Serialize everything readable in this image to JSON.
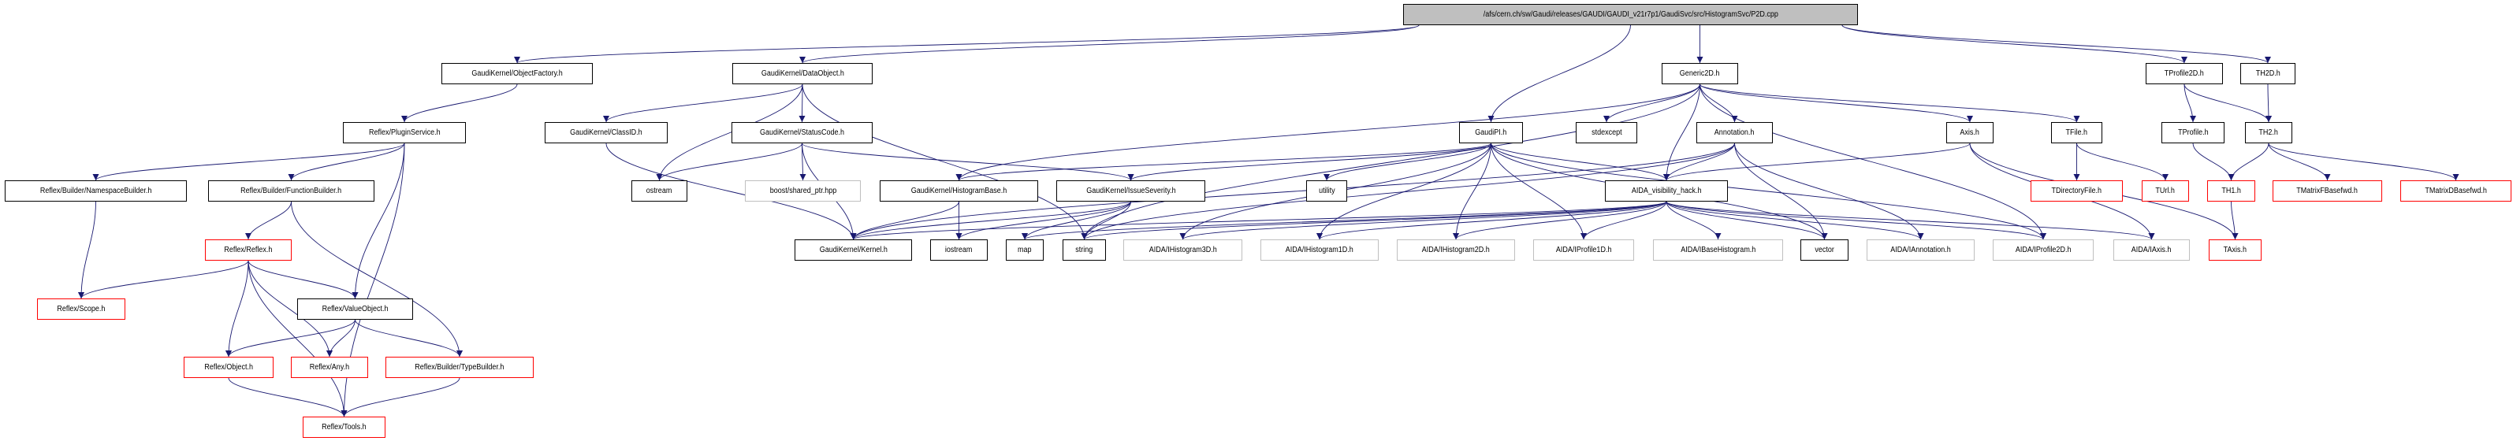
{
  "graph": {
    "edge_color": "#191970",
    "border_colors": {
      "normal": "#000000",
      "red": "#ff0000",
      "gray": "#bfbfbf",
      "root_fill": "#bfbfbf"
    },
    "nodes": [
      {
        "id": "root",
        "label": "/afs/cern.ch/sw/Gaudi/releases/GAUDI/GAUDI_v21r7p1/GaudiSvc/src/HistogramSvc/P2D.cpp",
        "style": "root"
      },
      {
        "id": "objfactory",
        "label": "GaudiKernel/ObjectFactory.h",
        "style": "normal"
      },
      {
        "id": "dataobject",
        "label": "GaudiKernel/DataObject.h",
        "style": "normal"
      },
      {
        "id": "generic2d",
        "label": "Generic2D.h",
        "style": "normal"
      },
      {
        "id": "tprofile2d",
        "label": "TProfile2D.h",
        "style": "normal"
      },
      {
        "id": "th2d",
        "label": "TH2D.h",
        "style": "normal"
      },
      {
        "id": "pluginservice",
        "label": "Reflex/PluginService.h",
        "style": "normal"
      },
      {
        "id": "classid",
        "label": "GaudiKernel/ClassID.h",
        "style": "normal"
      },
      {
        "id": "statuscode",
        "label": "GaudiKernel/StatusCode.h",
        "style": "normal"
      },
      {
        "id": "gaudipi",
        "label": "GaudiPI.h",
        "style": "normal"
      },
      {
        "id": "stdexcept",
        "label": "stdexcept",
        "style": "normal"
      },
      {
        "id": "annotation",
        "label": "Annotation.h",
        "style": "normal"
      },
      {
        "id": "axis",
        "label": "Axis.h",
        "style": "normal"
      },
      {
        "id": "tfile",
        "label": "TFile.h",
        "style": "normal"
      },
      {
        "id": "tprofile",
        "label": "TProfile.h",
        "style": "normal"
      },
      {
        "id": "th2",
        "label": "TH2.h",
        "style": "normal"
      },
      {
        "id": "nsbuilder",
        "label": "Reflex/Builder/NamespaceBuilder.h",
        "style": "normal"
      },
      {
        "id": "funcbuilder",
        "label": "Reflex/Builder/FunctionBuilder.h",
        "style": "normal"
      },
      {
        "id": "ostream",
        "label": "ostream",
        "style": "normal"
      },
      {
        "id": "boost",
        "label": "boost/shared_ptr.hpp",
        "style": "gray"
      },
      {
        "id": "histbase",
        "label": "GaudiKernel/HistogramBase.h",
        "style": "normal"
      },
      {
        "id": "issuesev",
        "label": "GaudiKernel/IssueSeverity.h",
        "style": "normal"
      },
      {
        "id": "utility",
        "label": "utility",
        "style": "normal"
      },
      {
        "id": "aidavis",
        "label": "AIDA_visibility_hack.h",
        "style": "normal"
      },
      {
        "id": "tdirfile",
        "label": "TDirectoryFile.h",
        "style": "red"
      },
      {
        "id": "turl",
        "label": "TUrl.h",
        "style": "red"
      },
      {
        "id": "th1",
        "label": "TH1.h",
        "style": "red"
      },
      {
        "id": "tmatf",
        "label": "TMatrixFBasefwd.h",
        "style": "red"
      },
      {
        "id": "tmatd",
        "label": "TMatrixDBasefwd.h",
        "style": "red"
      },
      {
        "id": "reflex",
        "label": "Reflex/Reflex.h",
        "style": "red"
      },
      {
        "id": "kernel",
        "label": "GaudiKernel/Kernel.h",
        "style": "normal"
      },
      {
        "id": "iostream",
        "label": "iostream",
        "style": "normal"
      },
      {
        "id": "map",
        "label": "map",
        "style": "normal"
      },
      {
        "id": "string",
        "label": "string",
        "style": "normal"
      },
      {
        "id": "ih3d",
        "label": "AIDA/IHistogram3D.h",
        "style": "gray"
      },
      {
        "id": "ih1d",
        "label": "AIDA/IHistogram1D.h",
        "style": "gray"
      },
      {
        "id": "ih2d",
        "label": "AIDA/IHistogram2D.h",
        "style": "gray"
      },
      {
        "id": "ip1d",
        "label": "AIDA/IProfile1D.h",
        "style": "gray"
      },
      {
        "id": "ibase",
        "label": "AIDA/IBaseHistogram.h",
        "style": "gray"
      },
      {
        "id": "vector",
        "label": "vector",
        "style": "normal"
      },
      {
        "id": "iannot",
        "label": "AIDA/IAnnotation.h",
        "style": "gray"
      },
      {
        "id": "ip2d",
        "label": "AIDA/IProfile2D.h",
        "style": "gray"
      },
      {
        "id": "iaxis",
        "label": "AIDA/IAxis.h",
        "style": "gray"
      },
      {
        "id": "taxis",
        "label": "TAxis.h",
        "style": "red"
      },
      {
        "id": "scope",
        "label": "Reflex/Scope.h",
        "style": "red"
      },
      {
        "id": "valueobj",
        "label": "Reflex/ValueObject.h",
        "style": "normal"
      },
      {
        "id": "object",
        "label": "Reflex/Object.h",
        "style": "red"
      },
      {
        "id": "any",
        "label": "Reflex/Any.h",
        "style": "red"
      },
      {
        "id": "typebuilder",
        "label": "Reflex/Builder/TypeBuilder.h",
        "style": "red"
      },
      {
        "id": "tools",
        "label": "Reflex/Tools.h",
        "style": "red"
      }
    ],
    "edges": [
      [
        "root",
        "objfactory"
      ],
      [
        "root",
        "dataobject"
      ],
      [
        "root",
        "gaudipi"
      ],
      [
        "root",
        "generic2d"
      ],
      [
        "root",
        "tprofile2d"
      ],
      [
        "root",
        "th2d"
      ],
      [
        "objfactory",
        "pluginservice"
      ],
      [
        "pluginservice",
        "nsbuilder"
      ],
      [
        "pluginservice",
        "funcbuilder"
      ],
      [
        "pluginservice",
        "valueobj"
      ],
      [
        "pluginservice",
        "tools"
      ],
      [
        "nsbuilder",
        "scope"
      ],
      [
        "funcbuilder",
        "reflex"
      ],
      [
        "funcbuilder",
        "typebuilder"
      ],
      [
        "reflex",
        "scope"
      ],
      [
        "reflex",
        "valueobj"
      ],
      [
        "reflex",
        "object"
      ],
      [
        "reflex",
        "any"
      ],
      [
        "reflex",
        "tools"
      ],
      [
        "valueobj",
        "object"
      ],
      [
        "valueobj",
        "any"
      ],
      [
        "valueobj",
        "typebuilder"
      ],
      [
        "object",
        "tools"
      ],
      [
        "typebuilder",
        "tools"
      ],
      [
        "dataobject",
        "classid"
      ],
      [
        "dataobject",
        "ostream"
      ],
      [
        "dataobject",
        "statuscode"
      ],
      [
        "dataobject",
        "string"
      ],
      [
        "classid",
        "kernel"
      ],
      [
        "statuscode",
        "ostream"
      ],
      [
        "statuscode",
        "boost"
      ],
      [
        "statuscode",
        "kernel"
      ],
      [
        "statuscode",
        "issuesev"
      ],
      [
        "histbase",
        "kernel"
      ],
      [
        "histbase",
        "iostream"
      ],
      [
        "issuesev",
        "kernel"
      ],
      [
        "issuesev",
        "iostream"
      ],
      [
        "issuesev",
        "map"
      ],
      [
        "issuesev",
        "string"
      ],
      [
        "gaudipi",
        "histbase"
      ],
      [
        "gaudipi",
        "issuesev"
      ],
      [
        "gaudipi",
        "utility"
      ],
      [
        "gaudipi",
        "ih3d"
      ],
      [
        "gaudipi",
        "ih1d"
      ],
      [
        "gaudipi",
        "ih2d"
      ],
      [
        "gaudipi",
        "ip1d"
      ],
      [
        "gaudipi",
        "aidavis"
      ],
      [
        "gaudipi",
        "ip2d"
      ],
      [
        "gaudipi",
        "vector"
      ],
      [
        "generic2d",
        "histbase"
      ],
      [
        "generic2d",
        "stdexcept"
      ],
      [
        "generic2d",
        "aidavis"
      ],
      [
        "generic2d",
        "annotation"
      ],
      [
        "generic2d",
        "ip2d"
      ],
      [
        "generic2d",
        "axis"
      ],
      [
        "generic2d",
        "tfile"
      ],
      [
        "generic2d",
        "string"
      ],
      [
        "annotation",
        "aidavis"
      ],
      [
        "annotation",
        "vector"
      ],
      [
        "annotation",
        "iannot"
      ],
      [
        "annotation",
        "kernel"
      ],
      [
        "annotation",
        "string"
      ],
      [
        "aidavis",
        "kernel"
      ],
      [
        "aidavis",
        "map"
      ],
      [
        "aidavis",
        "string"
      ],
      [
        "aidavis",
        "ih3d"
      ],
      [
        "aidavis",
        "ih1d"
      ],
      [
        "aidavis",
        "ih2d"
      ],
      [
        "aidavis",
        "ip1d"
      ],
      [
        "aidavis",
        "ibase"
      ],
      [
        "aidavis",
        "vector"
      ],
      [
        "aidavis",
        "iannot"
      ],
      [
        "aidavis",
        "ip2d"
      ],
      [
        "aidavis",
        "iaxis"
      ],
      [
        "axis",
        "aidavis"
      ],
      [
        "axis",
        "iaxis"
      ],
      [
        "axis",
        "taxis"
      ],
      [
        "tfile",
        "tdirfile"
      ],
      [
        "tfile",
        "turl"
      ],
      [
        "tprofile2d",
        "tprofile"
      ],
      [
        "tprofile2d",
        "th2"
      ],
      [
        "th2d",
        "th2"
      ],
      [
        "tprofile",
        "th1"
      ],
      [
        "th2",
        "th1"
      ],
      [
        "th2",
        "tmatf"
      ],
      [
        "th2",
        "tmatd"
      ],
      [
        "th1",
        "taxis"
      ]
    ]
  }
}
